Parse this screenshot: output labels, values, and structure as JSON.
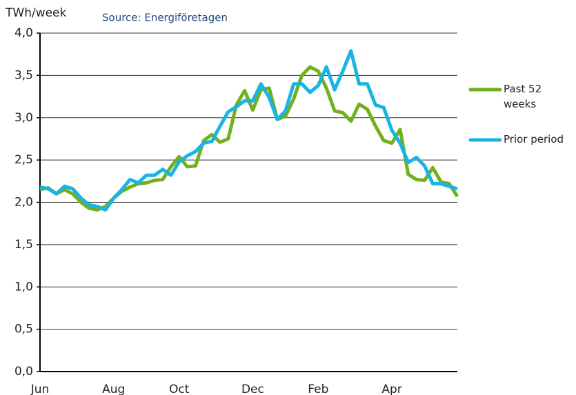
{
  "chart_data": {
    "type": "line",
    "y_label": "TWh/week",
    "subtitle": "Source: Energiföretagen",
    "categories": [
      "Jun",
      null,
      null,
      null,
      null,
      null,
      null,
      null,
      null,
      "Aug",
      null,
      null,
      null,
      null,
      null,
      null,
      null,
      "Oct",
      null,
      null,
      null,
      null,
      null,
      null,
      null,
      null,
      "Dec",
      null,
      null,
      null,
      null,
      null,
      null,
      null,
      "Feb",
      null,
      null,
      null,
      null,
      null,
      null,
      null,
      null,
      "Apr",
      null,
      null,
      null,
      null,
      null,
      null,
      null,
      null
    ],
    "series": [
      {
        "name": "Past 52 weeks",
        "color": "#72b01d",
        "values": [
          2.15,
          2.17,
          2.1,
          2.15,
          2.1,
          2.0,
          1.93,
          1.91,
          1.95,
          2.05,
          2.13,
          2.18,
          2.22,
          2.23,
          2.26,
          2.27,
          2.42,
          2.54,
          2.42,
          2.43,
          2.73,
          2.8,
          2.71,
          2.75,
          3.15,
          3.32,
          3.09,
          3.33,
          3.35,
          2.98,
          3.02,
          3.22,
          3.5,
          3.6,
          3.55,
          3.35,
          3.08,
          3.06,
          2.96,
          3.16,
          3.1,
          2.9,
          2.73,
          2.7,
          2.86,
          2.33,
          2.27,
          2.26,
          2.41,
          2.24,
          2.22,
          2.07
        ]
      },
      {
        "name": "Prior period",
        "color": "#17b4e4",
        "values": [
          2.18,
          2.16,
          2.1,
          2.19,
          2.16,
          2.05,
          1.97,
          1.95,
          1.91,
          2.05,
          2.15,
          2.27,
          2.23,
          2.32,
          2.32,
          2.39,
          2.32,
          2.48,
          2.55,
          2.6,
          2.7,
          2.72,
          2.9,
          3.07,
          3.13,
          3.2,
          3.2,
          3.4,
          3.24,
          2.98,
          3.08,
          3.4,
          3.4,
          3.3,
          3.38,
          3.6,
          3.33,
          3.55,
          3.79,
          3.4,
          3.4,
          3.15,
          3.12,
          2.85,
          2.7,
          2.47,
          2.53,
          2.43,
          2.22,
          2.22,
          2.19,
          2.16
        ]
      }
    ],
    "ylim": [
      0,
      4
    ],
    "yticks": [
      {
        "value": 0,
        "label": "0,0"
      },
      {
        "value": 0.5,
        "label": "0,5"
      },
      {
        "value": 1,
        "label": "1,0"
      },
      {
        "value": 1.5,
        "label": "1,5"
      },
      {
        "value": 2,
        "label": "2,0"
      },
      {
        "value": 2.5,
        "label": "2,5"
      },
      {
        "value": 3,
        "label": "3,0"
      },
      {
        "value": 3.5,
        "label": "3,5"
      },
      {
        "value": 4,
        "label": "4,0"
      }
    ],
    "grid": true,
    "legend": "right"
  }
}
